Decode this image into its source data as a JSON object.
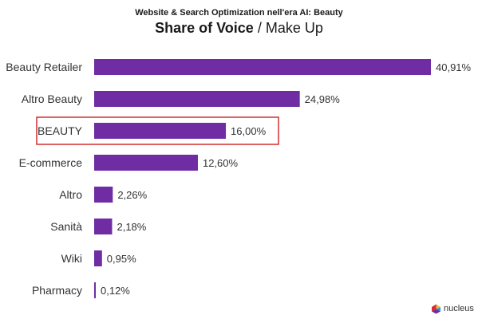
{
  "header": {
    "supertitle": "Website & Search Optimization nell'era AI: Beauty",
    "title_main": "Share of Voice",
    "title_sep": "/",
    "title_sub": "Make Up"
  },
  "chart_data": {
    "type": "bar",
    "orientation": "horizontal",
    "categories": [
      "Beauty Retailer",
      "Altro Beauty",
      "BEAUTY",
      "E-commerce",
      "Altro",
      "Sanità",
      "Wiki",
      "Pharmacy"
    ],
    "values": [
      40.91,
      24.98,
      16.0,
      12.6,
      2.26,
      2.18,
      0.95,
      0.12
    ],
    "value_labels": [
      "40,91%",
      "24,98%",
      "16,00%",
      "12,60%",
      "2,26%",
      "2,18%",
      "0,95%",
      "0,12%"
    ],
    "unit": "%",
    "highlighted_category": "BEAUTY",
    "bar_color": "#6f2ca3",
    "highlight_color": "#d22f2f",
    "grid": false,
    "legend": "none"
  },
  "logo": {
    "text": "nucleus",
    "icon": "nucleus-logo-icon",
    "colors": [
      "#f2b233",
      "#2a9bd5",
      "#6f2ca3",
      "#d22f2f"
    ]
  }
}
